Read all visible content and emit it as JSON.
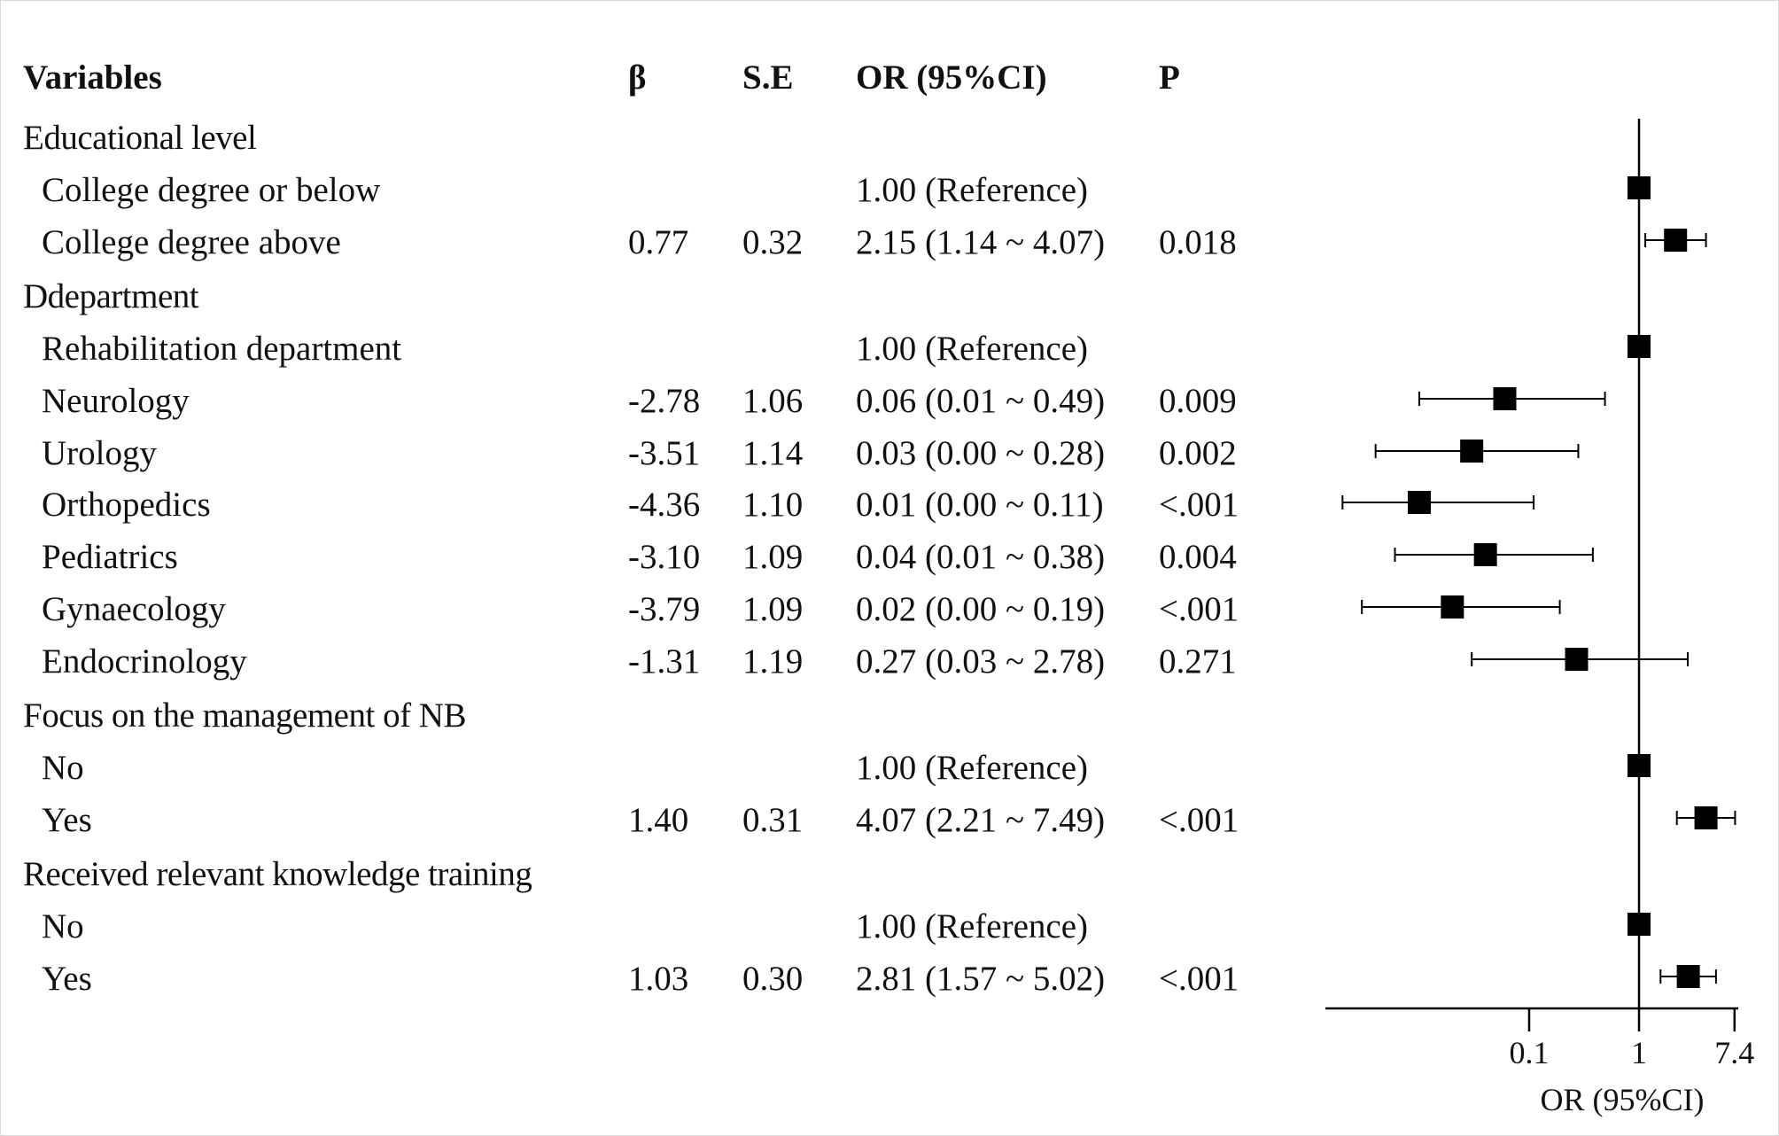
{
  "table": {
    "headers": {
      "variables": "Variables",
      "beta": "β",
      "se": "S.E",
      "or": "OR (95%CI)",
      "p": "P"
    },
    "rows": [
      {
        "kind": "group",
        "label": "Educational level"
      },
      {
        "kind": "item",
        "label": "College degree or below",
        "beta": "",
        "se": "",
        "or": "1.00 (Reference)",
        "p": ""
      },
      {
        "kind": "item",
        "label": "College degree above",
        "beta": "0.77",
        "se": "0.32",
        "or": "2.15 (1.14 ~ 4.07)",
        "p": "0.018"
      },
      {
        "kind": "group",
        "label": "Ddepartment"
      },
      {
        "kind": "item",
        "label": "Rehabilitation department",
        "beta": "",
        "se": "",
        "or": "1.00 (Reference)",
        "p": ""
      },
      {
        "kind": "item",
        "label": "Neurology",
        "beta": "-2.78",
        "se": "1.06",
        "or": "0.06 (0.01 ~ 0.49)",
        "p": "0.009"
      },
      {
        "kind": "item",
        "label": "Urology",
        "beta": "-3.51",
        "se": "1.14",
        "or": "0.03 (0.00 ~ 0.28)",
        "p": "0.002"
      },
      {
        "kind": "item",
        "label": "Orthopedics",
        "beta": "-4.36",
        "se": "1.10",
        "or": "0.01 (0.00 ~ 0.11)",
        "p": "<.001"
      },
      {
        "kind": "item",
        "label": "Pediatrics",
        "beta": "-3.10",
        "se": "1.09",
        "or": "0.04 (0.01 ~ 0.38)",
        "p": "0.004"
      },
      {
        "kind": "item",
        "label": "Gynaecology",
        "beta": "-3.79",
        "se": "1.09",
        "or": "0.02 (0.00 ~ 0.19)",
        "p": "<.001"
      },
      {
        "kind": "item",
        "label": "Endocrinology",
        "beta": "-1.31",
        "se": "1.19",
        "or": "0.27 (0.03 ~ 2.78)",
        "p": "0.271"
      },
      {
        "kind": "group",
        "label": "Focus on the management of NB"
      },
      {
        "kind": "item",
        "label": "No",
        "beta": "",
        "se": "",
        "or": "1.00 (Reference)",
        "p": ""
      },
      {
        "kind": "item",
        "label": "Yes",
        "beta": "1.40",
        "se": "0.31",
        "or": "4.07 (2.21 ~ 7.49)",
        "p": "<.001"
      },
      {
        "kind": "group",
        "label": "Received relevant knowledge training"
      },
      {
        "kind": "item",
        "label": "No",
        "beta": "",
        "se": "",
        "or": "1.00 (Reference)",
        "p": ""
      },
      {
        "kind": "item",
        "label": "Yes",
        "beta": "1.03",
        "se": "0.30",
        "or": "2.81 (1.57 ~ 5.02)",
        "p": "<.001"
      }
    ]
  },
  "chart_data": {
    "type": "forest",
    "scale": "log",
    "reference_line": 1,
    "xticks": [
      0.1,
      1,
      7.4
    ],
    "xtick_labels": [
      "0.1",
      "1",
      "7.4"
    ],
    "xlabel": "OR (95%CI)",
    "points": [
      {
        "label": "College degree or below",
        "or": 1.0,
        "lower": 1.0,
        "upper": 1.0
      },
      {
        "label": "College degree above",
        "or": 2.15,
        "lower": 1.14,
        "upper": 4.07
      },
      {
        "label": "Rehabilitation department",
        "or": 1.0,
        "lower": 1.0,
        "upper": 1.0
      },
      {
        "label": "Neurology",
        "or": 0.06,
        "lower": 0.01,
        "upper": 0.49
      },
      {
        "label": "Urology",
        "or": 0.03,
        "lower": 0.004,
        "upper": 0.28
      },
      {
        "label": "Orthopedics",
        "or": 0.01,
        "lower": 0.002,
        "upper": 0.11
      },
      {
        "label": "Pediatrics",
        "or": 0.04,
        "lower": 0.006,
        "upper": 0.38
      },
      {
        "label": "Gynaecology",
        "or": 0.02,
        "lower": 0.003,
        "upper": 0.19
      },
      {
        "label": "Endocrinology",
        "or": 0.27,
        "lower": 0.03,
        "upper": 2.78
      },
      {
        "label": "No",
        "or": 1.0,
        "lower": 1.0,
        "upper": 1.0
      },
      {
        "label": "Yes",
        "or": 4.07,
        "lower": 2.21,
        "upper": 7.49
      },
      {
        "label": "No",
        "or": 1.0,
        "lower": 1.0,
        "upper": 1.0
      },
      {
        "label": "Yes",
        "or": 2.81,
        "lower": 1.57,
        "upper": 5.02
      }
    ],
    "colors": {
      "marker": "#000000",
      "line": "#000000"
    }
  }
}
